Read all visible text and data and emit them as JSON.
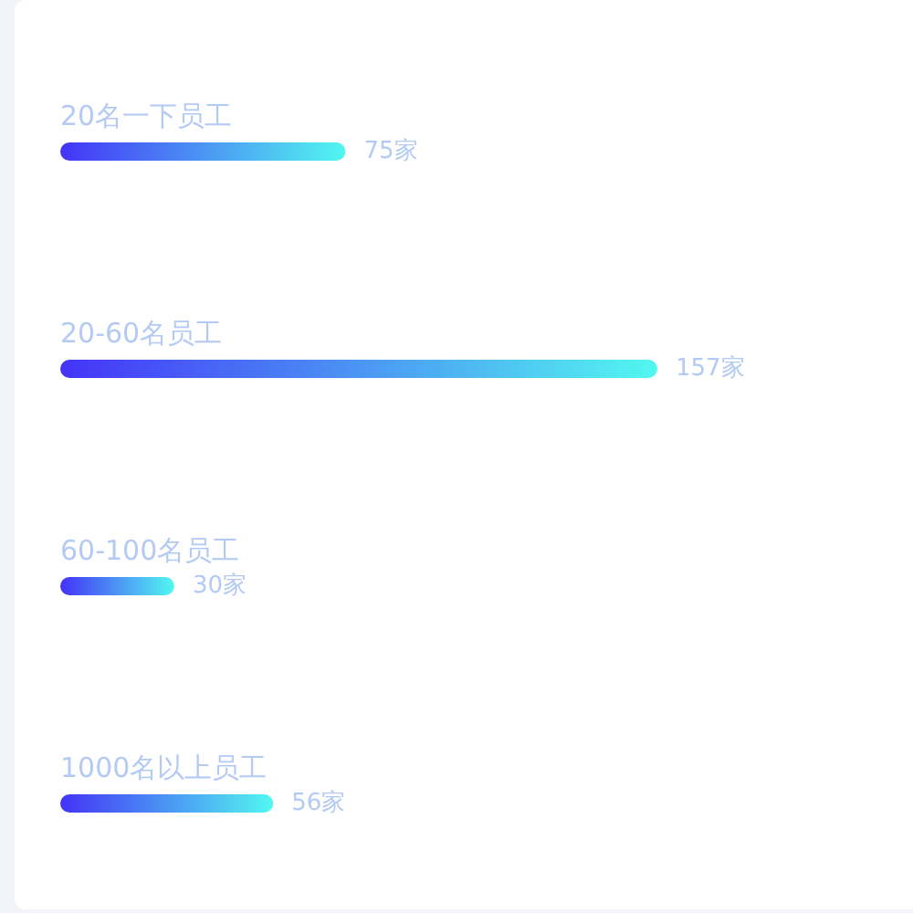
{
  "chart_data": {
    "type": "bar",
    "orientation": "horizontal",
    "categories": [
      "20名一下员工",
      "20-60名员工",
      "60-100名员工",
      "1000名以上员工"
    ],
    "values": [
      75,
      157,
      30,
      56
    ],
    "value_labels": [
      "75家",
      "157家",
      "30家",
      "56家"
    ],
    "color": "#4433f7",
    "tick_labels": "y"
  }
}
